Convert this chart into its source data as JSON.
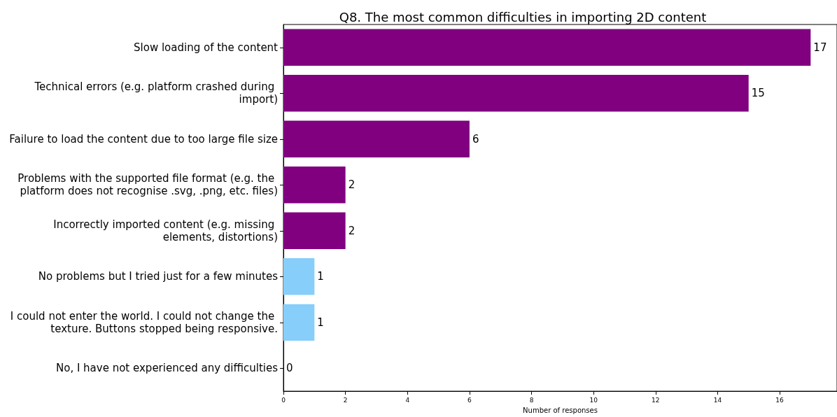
{
  "chart_data": {
    "type": "bar",
    "orientation": "horizontal",
    "title": "Q8. The most common difficulties in importing 2D content",
    "xlabel": "Number of responses",
    "categories": [
      "Slow loading of the content",
      "Technical errors (e.g. platform crashed during import)",
      "Failure to load the content due to too large file size",
      "Problems with the supported file format (e.g. the platform does not recognise .svg, .png, etc. files)",
      "Incorrectly imported content (e.g. missing elements, distortions)",
      "No problems but I tried just for a few minutes",
      "I could not enter the world. I could not change the texture. Buttons stopped being responsive.",
      "No, I have not experienced any difficulties"
    ],
    "values": [
      17,
      15,
      6,
      2,
      2,
      1,
      1,
      0
    ],
    "colors": [
      "#800080",
      "#800080",
      "#800080",
      "#800080",
      "#800080",
      "#87cefa",
      "#87cefa",
      "#87cefa"
    ],
    "xlim": [
      0,
      17.85
    ],
    "xticks": [
      0,
      2,
      4,
      6,
      8,
      10,
      12,
      14,
      16
    ],
    "data_labels": true,
    "grid": false
  }
}
